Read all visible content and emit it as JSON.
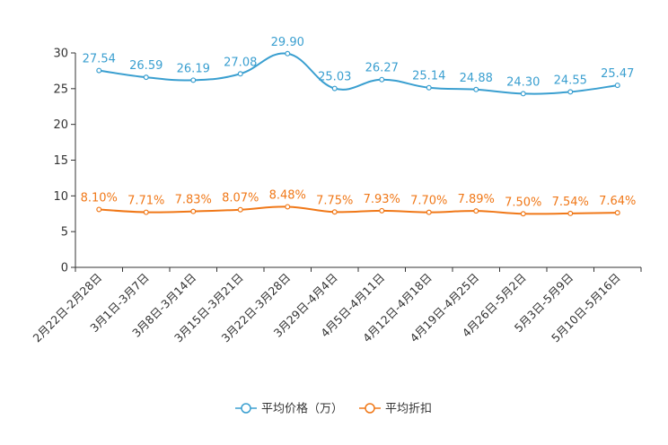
{
  "chart_data": {
    "type": "line",
    "categories": [
      "2月22日-2月28日",
      "3月1日-3月7日",
      "3月8日-3月14日",
      "3月15日-3月21日",
      "3月22日-3月28日",
      "3月29日-4月4日",
      "4月5日-4月11日",
      "4月12日-4月18日",
      "4月19日-4月25日",
      "4月26日-5月2日",
      "5月3日-5月9日",
      "5月10日-5月16日"
    ],
    "series": [
      {
        "name": "平均价格（万）",
        "color": "#3a9fd0",
        "values": [
          27.54,
          26.59,
          26.19,
          27.08,
          29.9,
          25.03,
          26.27,
          25.14,
          24.88,
          24.3,
          24.55,
          25.47
        ],
        "labels": [
          "27.54",
          "26.59",
          "26.19",
          "27.08",
          "29.90",
          "25.03",
          "26.27",
          "25.14",
          "24.88",
          "24.30",
          "24.55",
          "25.47"
        ]
      },
      {
        "name": "平均折扣",
        "color": "#f07818",
        "values": [
          8.1,
          7.71,
          7.83,
          8.07,
          8.48,
          7.75,
          7.93,
          7.7,
          7.89,
          7.5,
          7.54,
          7.64
        ],
        "labels": [
          "8.10%",
          "7.71%",
          "7.83%",
          "8.07%",
          "8.48%",
          "7.75%",
          "7.93%",
          "7.70%",
          "7.89%",
          "7.50%",
          "7.54%",
          "7.64%"
        ]
      }
    ],
    "yticks": [
      "0",
      "5",
      "10",
      "15",
      "20",
      "25",
      "30"
    ],
    "ylim": [
      0,
      30
    ],
    "legend_position": "bottom-center"
  }
}
